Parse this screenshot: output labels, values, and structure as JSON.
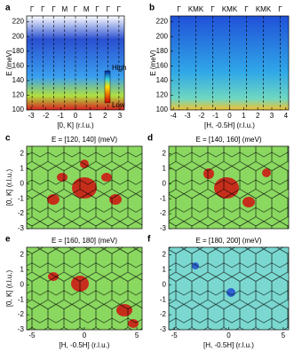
{
  "chart_data": [
    {
      "type": "heatmap",
      "panel": "a",
      "top_labels": [
        "Γ",
        "Γ",
        "Γ",
        "M",
        "Γ",
        "M",
        "Γ",
        "Γ",
        "Γ"
      ],
      "xlabel": "[0, K] (r.l.u.)",
      "ylabel": "E (meV)",
      "xlim": [
        -3.3,
        3.3
      ],
      "xticks": [
        -3,
        -2,
        -1,
        0,
        1,
        2,
        3
      ],
      "ylim": [
        100,
        228
      ],
      "yticks": [
        100,
        120,
        140,
        160,
        180,
        200,
        220
      ],
      "colorbar_labels": [
        "High",
        "Low"
      ]
    },
    {
      "type": "heatmap",
      "panel": "b",
      "top_labels": [
        "Γ",
        "KMK",
        "Γ",
        "KMK",
        "Γ",
        "KMK",
        "Γ"
      ],
      "xlabel": "[H, -0.5H] (r.l.u.)",
      "ylabel": "E (meV)",
      "xlim": [
        -4.2,
        4.2
      ],
      "xticks": [
        -4,
        -3,
        -2,
        -1,
        0,
        1,
        2,
        3,
        4
      ],
      "ylim": [
        100,
        228
      ],
      "yticks": [
        100,
        120,
        140,
        160,
        180,
        200,
        220
      ]
    },
    {
      "type": "map",
      "panel": "c",
      "title": "E = [120, 140] (meV)",
      "ylabel": "[0, K] (r.l.u.)",
      "ylim": [
        -3,
        2.5
      ],
      "yticks": [
        -3,
        -2,
        -1,
        0,
        1,
        2
      ]
    },
    {
      "type": "map",
      "panel": "d",
      "title": "E = [140, 160] (meV)",
      "ylim": [
        -3,
        2.5
      ],
      "yticks": [
        -3,
        -2,
        -1,
        0,
        1,
        2
      ]
    },
    {
      "type": "map",
      "panel": "e",
      "title": "E = [160, 180] (meV)",
      "ylabel": "[0, K] (r.l.u.)",
      "xlabel": "[H, -0.5H] (r.l.u.)",
      "xlim": [
        -5.5,
        5.5
      ],
      "xticks": [
        -5,
        0,
        5
      ],
      "ylim": [
        -3,
        2.5
      ],
      "yticks": [
        -3,
        -2,
        -1,
        0,
        1,
        2
      ]
    },
    {
      "type": "map",
      "panel": "f",
      "title": "E = [180, 200] (meV)",
      "xlabel": "[H, -0.5H] (r.l.u.)",
      "xlim": [
        -5.5,
        5.5
      ],
      "xticks": [
        -5,
        0,
        5
      ],
      "ylim": [
        -3,
        2.5
      ],
      "yticks": [
        -3,
        -2,
        -1,
        0,
        1,
        2
      ]
    }
  ]
}
